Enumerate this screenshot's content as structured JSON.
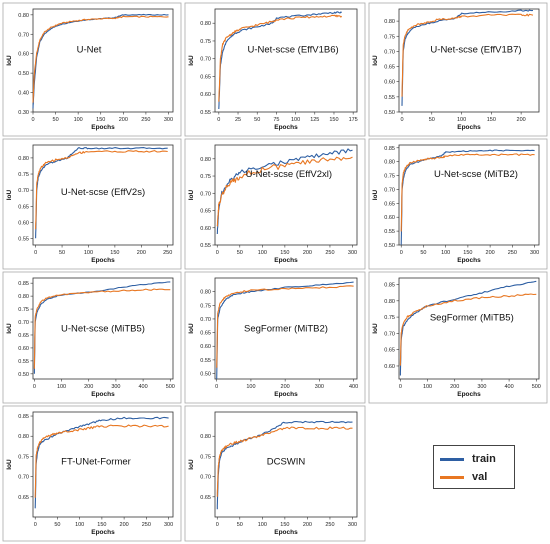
{
  "colors": {
    "train": "#2e5fa3",
    "val": "#e87722"
  },
  "legend": {
    "train": "train",
    "val": "val"
  },
  "chart_data": [
    {
      "type": "line",
      "title": "U-Net",
      "xlabel": "Epochs",
      "ylabel": "IoU",
      "xlim": [
        0,
        310
      ],
      "ylim": [
        0.3,
        0.83
      ],
      "xticks": [
        0,
        50,
        100,
        150,
        200,
        250,
        300
      ],
      "yticks": [
        0.3,
        0.4,
        0.5,
        0.6,
        0.7,
        0.8
      ],
      "series": [
        {
          "name": "train",
          "x": [
            0,
            3,
            8,
            15,
            25,
            40,
            60,
            90,
            120,
            150,
            180,
            200,
            250,
            300
          ],
          "y": [
            0.32,
            0.45,
            0.58,
            0.66,
            0.7,
            0.73,
            0.75,
            0.765,
            0.775,
            0.78,
            0.785,
            0.8,
            0.8,
            0.8
          ]
        },
        {
          "name": "val",
          "x": [
            0,
            3,
            8,
            15,
            25,
            40,
            60,
            90,
            120,
            150,
            180,
            200,
            250,
            300
          ],
          "y": [
            0.35,
            0.5,
            0.6,
            0.67,
            0.71,
            0.735,
            0.755,
            0.768,
            0.776,
            0.78,
            0.782,
            0.79,
            0.79,
            0.79
          ]
        }
      ]
    },
    {
      "type": "line",
      "title": "U-Net-scse (EffV1B6)",
      "xlabel": "Epochs",
      "ylabel": "IoU",
      "xlim": [
        -5,
        180
      ],
      "ylim": [
        0.55,
        0.84
      ],
      "xticks": [
        0,
        25,
        50,
        75,
        100,
        125,
        150,
        175
      ],
      "yticks": [
        0.55,
        0.6,
        0.65,
        0.7,
        0.75,
        0.8
      ],
      "series": [
        {
          "name": "train",
          "x": [
            0,
            2,
            5,
            10,
            20,
            30,
            50,
            70,
            75,
            100,
            125,
            150,
            160
          ],
          "y": [
            0.56,
            0.68,
            0.72,
            0.75,
            0.77,
            0.78,
            0.79,
            0.8,
            0.815,
            0.82,
            0.825,
            0.83,
            0.83
          ]
        },
        {
          "name": "val",
          "x": [
            0,
            2,
            5,
            10,
            20,
            30,
            50,
            70,
            75,
            100,
            125,
            150,
            160
          ],
          "y": [
            0.58,
            0.7,
            0.74,
            0.76,
            0.775,
            0.785,
            0.795,
            0.805,
            0.81,
            0.815,
            0.818,
            0.82,
            0.82
          ]
        }
      ]
    },
    {
      "type": "line",
      "title": "U-Net-scse (EffV1B7)",
      "xlabel": "Epochs",
      "ylabel": "IoU",
      "xlim": [
        -5,
        230
      ],
      "ylim": [
        0.5,
        0.84
      ],
      "xticks": [
        0,
        50,
        100,
        150,
        200
      ],
      "yticks": [
        0.5,
        0.55,
        0.6,
        0.65,
        0.7,
        0.75,
        0.8
      ],
      "series": [
        {
          "name": "train",
          "x": [
            0,
            2,
            5,
            10,
            20,
            40,
            60,
            90,
            100,
            150,
            200,
            220
          ],
          "y": [
            0.52,
            0.7,
            0.74,
            0.76,
            0.78,
            0.79,
            0.8,
            0.81,
            0.825,
            0.83,
            0.835,
            0.835
          ]
        },
        {
          "name": "val",
          "x": [
            0,
            2,
            5,
            10,
            20,
            40,
            60,
            90,
            100,
            150,
            200,
            220
          ],
          "y": [
            0.55,
            0.72,
            0.75,
            0.77,
            0.785,
            0.795,
            0.805,
            0.81,
            0.815,
            0.82,
            0.82,
            0.82
          ]
        }
      ]
    },
    {
      "type": "line",
      "title": "U-Net-scse (EffV2s)",
      "xlabel": "Epochs",
      "ylabel": "IoU",
      "xlim": [
        -5,
        260
      ],
      "ylim": [
        0.53,
        0.84
      ],
      "xticks": [
        0,
        50,
        100,
        150,
        200,
        250
      ],
      "yticks": [
        0.55,
        0.6,
        0.65,
        0.7,
        0.75,
        0.8
      ],
      "series": [
        {
          "name": "train",
          "x": [
            0,
            2,
            5,
            10,
            20,
            40,
            60,
            80,
            100,
            150,
            200,
            250
          ],
          "y": [
            0.55,
            0.7,
            0.74,
            0.76,
            0.78,
            0.79,
            0.8,
            0.83,
            0.83,
            0.83,
            0.83,
            0.83
          ]
        },
        {
          "name": "val",
          "x": [
            0,
            2,
            5,
            10,
            20,
            40,
            60,
            80,
            100,
            150,
            200,
            250
          ],
          "y": [
            0.58,
            0.72,
            0.75,
            0.77,
            0.785,
            0.795,
            0.8,
            0.815,
            0.82,
            0.82,
            0.82,
            0.82
          ]
        }
      ]
    },
    {
      "type": "line",
      "title": "U-Net-scse (EffV2xl)",
      "xlabel": "Epochs",
      "ylabel": "IoU",
      "xlim": [
        -5,
        310
      ],
      "ylim": [
        0.55,
        0.84
      ],
      "xticks": [
        0,
        50,
        100,
        150,
        200,
        250,
        300
      ],
      "yticks": [
        0.55,
        0.6,
        0.65,
        0.7,
        0.75,
        0.8
      ],
      "series": [
        {
          "name": "train",
          "x": [
            0,
            3,
            10,
            30,
            50,
            100,
            150,
            200,
            250,
            300
          ],
          "y": [
            0.58,
            0.65,
            0.7,
            0.74,
            0.76,
            0.78,
            0.79,
            0.805,
            0.815,
            0.825
          ]
        },
        {
          "name": "val",
          "x": [
            0,
            3,
            10,
            30,
            50,
            100,
            150,
            200,
            250,
            300
          ],
          "y": [
            0.6,
            0.66,
            0.7,
            0.73,
            0.75,
            0.77,
            0.78,
            0.79,
            0.8,
            0.805
          ]
        }
      ]
    },
    {
      "type": "line",
      "title": "U-Net-scse (MiTB2)",
      "xlabel": "Epochs",
      "ylabel": "IoU",
      "xlim": [
        -5,
        310
      ],
      "ylim": [
        0.5,
        0.86
      ],
      "xticks": [
        0,
        50,
        100,
        150,
        200,
        250,
        300
      ],
      "yticks": [
        0.5,
        0.55,
        0.6,
        0.65,
        0.7,
        0.75,
        0.8,
        0.85
      ],
      "series": [
        {
          "name": "train",
          "x": [
            0,
            2,
            5,
            10,
            20,
            40,
            60,
            90,
            100,
            150,
            200,
            250,
            300
          ],
          "y": [
            0.5,
            0.7,
            0.74,
            0.77,
            0.79,
            0.8,
            0.81,
            0.82,
            0.835,
            0.838,
            0.84,
            0.84,
            0.84
          ]
        },
        {
          "name": "val",
          "x": [
            0,
            2,
            5,
            10,
            20,
            40,
            60,
            90,
            100,
            150,
            200,
            250,
            300
          ],
          "y": [
            0.55,
            0.72,
            0.76,
            0.78,
            0.795,
            0.805,
            0.81,
            0.815,
            0.82,
            0.825,
            0.825,
            0.825,
            0.825
          ]
        }
      ]
    },
    {
      "type": "line",
      "title": "U-Net-scse (MiTB5)",
      "xlabel": "Epochs",
      "ylabel": "IoU",
      "xlim": [
        -5,
        510
      ],
      "ylim": [
        0.48,
        0.87
      ],
      "xticks": [
        0,
        100,
        200,
        300,
        400,
        500
      ],
      "yticks": [
        0.5,
        0.55,
        0.6,
        0.65,
        0.7,
        0.75,
        0.8,
        0.85
      ],
      "series": [
        {
          "name": "train",
          "x": [
            0,
            3,
            10,
            25,
            50,
            100,
            200,
            300,
            400,
            500
          ],
          "y": [
            0.5,
            0.7,
            0.74,
            0.77,
            0.79,
            0.805,
            0.815,
            0.83,
            0.845,
            0.855
          ]
        },
        {
          "name": "val",
          "x": [
            0,
            3,
            10,
            25,
            50,
            100,
            200,
            300,
            400,
            500
          ],
          "y": [
            0.52,
            0.72,
            0.75,
            0.78,
            0.795,
            0.805,
            0.815,
            0.82,
            0.825,
            0.825
          ]
        }
      ]
    },
    {
      "type": "line",
      "title": "SegFormer (MiTB2)",
      "xlabel": "Epochs",
      "ylabel": "IoU",
      "xlim": [
        -5,
        410
      ],
      "ylim": [
        0.48,
        0.85
      ],
      "xticks": [
        0,
        100,
        200,
        300,
        400
      ],
      "yticks": [
        0.5,
        0.55,
        0.6,
        0.65,
        0.7,
        0.75,
        0.8
      ],
      "series": [
        {
          "name": "train",
          "x": [
            0,
            3,
            10,
            25,
            50,
            100,
            200,
            300,
            400
          ],
          "y": [
            0.48,
            0.7,
            0.74,
            0.77,
            0.79,
            0.8,
            0.815,
            0.825,
            0.835
          ]
        },
        {
          "name": "val",
          "x": [
            0,
            3,
            10,
            25,
            50,
            100,
            200,
            300,
            400
          ],
          "y": [
            0.52,
            0.72,
            0.76,
            0.78,
            0.795,
            0.805,
            0.81,
            0.815,
            0.82
          ]
        }
      ]
    },
    {
      "type": "line",
      "title": "SegFormer (MiTB5)",
      "xlabel": "Epochs",
      "ylabel": "IoU",
      "xlim": [
        -5,
        510
      ],
      "ylim": [
        0.56,
        0.87
      ],
      "xticks": [
        0,
        100,
        200,
        300,
        400,
        500
      ],
      "yticks": [
        0.6,
        0.65,
        0.7,
        0.75,
        0.8,
        0.85
      ],
      "series": [
        {
          "name": "train",
          "x": [
            0,
            3,
            10,
            25,
            50,
            100,
            200,
            300,
            400,
            500
          ],
          "y": [
            0.57,
            0.68,
            0.72,
            0.74,
            0.76,
            0.785,
            0.805,
            0.825,
            0.845,
            0.86
          ]
        },
        {
          "name": "val",
          "x": [
            0,
            3,
            10,
            25,
            50,
            100,
            200,
            300,
            400,
            500
          ],
          "y": [
            0.6,
            0.7,
            0.73,
            0.75,
            0.765,
            0.785,
            0.8,
            0.81,
            0.815,
            0.82
          ]
        }
      ]
    },
    {
      "type": "line",
      "title": "FT-UNet-Former",
      "xlabel": "Epochs",
      "ylabel": "IoU",
      "xlim": [
        -5,
        310
      ],
      "ylim": [
        0.6,
        0.86
      ],
      "xticks": [
        0,
        50,
        100,
        150,
        200,
        250,
        300
      ],
      "yticks": [
        0.65,
        0.7,
        0.75,
        0.8,
        0.85
      ],
      "series": [
        {
          "name": "train",
          "x": [
            0,
            2,
            5,
            10,
            20,
            40,
            60,
            90,
            120,
            150,
            200,
            250,
            300
          ],
          "y": [
            0.62,
            0.73,
            0.76,
            0.78,
            0.79,
            0.8,
            0.81,
            0.82,
            0.83,
            0.84,
            0.845,
            0.845,
            0.845
          ]
        },
        {
          "name": "val",
          "x": [
            0,
            2,
            5,
            10,
            20,
            40,
            60,
            90,
            120,
            150,
            200,
            250,
            300
          ],
          "y": [
            0.65,
            0.75,
            0.77,
            0.785,
            0.795,
            0.805,
            0.81,
            0.815,
            0.82,
            0.825,
            0.825,
            0.825,
            0.825
          ]
        }
      ]
    },
    {
      "type": "line",
      "title": "DCSWIN",
      "xlabel": "Epochs",
      "ylabel": "IoU",
      "xlim": [
        -5,
        310
      ],
      "ylim": [
        0.6,
        0.86
      ],
      "xticks": [
        0,
        50,
        100,
        150,
        200,
        250,
        300
      ],
      "yticks": [
        0.65,
        0.7,
        0.75,
        0.8
      ],
      "series": [
        {
          "name": "train",
          "x": [
            0,
            2,
            5,
            10,
            20,
            40,
            60,
            90,
            120,
            150,
            200,
            250,
            300
          ],
          "y": [
            0.62,
            0.7,
            0.74,
            0.76,
            0.77,
            0.78,
            0.79,
            0.8,
            0.815,
            0.835,
            0.835,
            0.835,
            0.835
          ]
        },
        {
          "name": "val",
          "x": [
            0,
            2,
            5,
            10,
            20,
            40,
            60,
            90,
            120,
            150,
            200,
            250,
            300
          ],
          "y": [
            0.65,
            0.72,
            0.75,
            0.765,
            0.775,
            0.785,
            0.79,
            0.8,
            0.81,
            0.82,
            0.82,
            0.82,
            0.82
          ]
        }
      ]
    }
  ]
}
